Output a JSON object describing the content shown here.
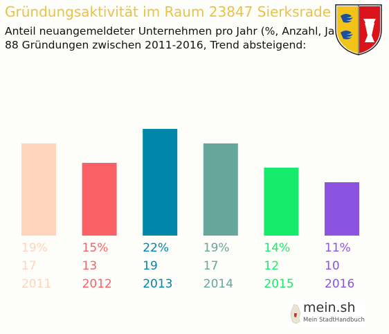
{
  "header": {
    "title": "Gründungsaktivität im Raum 23847 Sierksrade",
    "subtitle_line1": "Anteil neuangemeldeter Unternehmen pro Jahr (%, Anzahl, Jahr)",
    "subtitle_line2": "88 Gründungen zwischen 2011-2016, Trend absteigend:"
  },
  "crest": {
    "icon": "coat-of-arms-schleswig-holstein"
  },
  "logo": {
    "name": "mein.sh",
    "tagline": "Mein StadtHandbuch"
  },
  "chart_data": {
    "type": "bar",
    "title": "Gründungsaktivität im Raum 23847 Sierksrade",
    "categories": [
      "2011",
      "2012",
      "2013",
      "2014",
      "2015",
      "2016"
    ],
    "values": [
      19,
      15,
      22,
      19,
      14,
      11
    ],
    "percent_labels": [
      "19%",
      "15%",
      "22%",
      "19%",
      "14%",
      "11%"
    ],
    "count_labels": [
      "17",
      "13",
      "19",
      "17",
      "12",
      "10"
    ],
    "values_unit": "%",
    "colors": [
      "#ffd4bc",
      "#f96167",
      "#0086a9",
      "#67a69b",
      "#17eb6b",
      "#8b53e0"
    ],
    "ylim": [
      0,
      22
    ],
    "grid": false,
    "legend": "none",
    "xlabel": "",
    "ylabel": ""
  }
}
